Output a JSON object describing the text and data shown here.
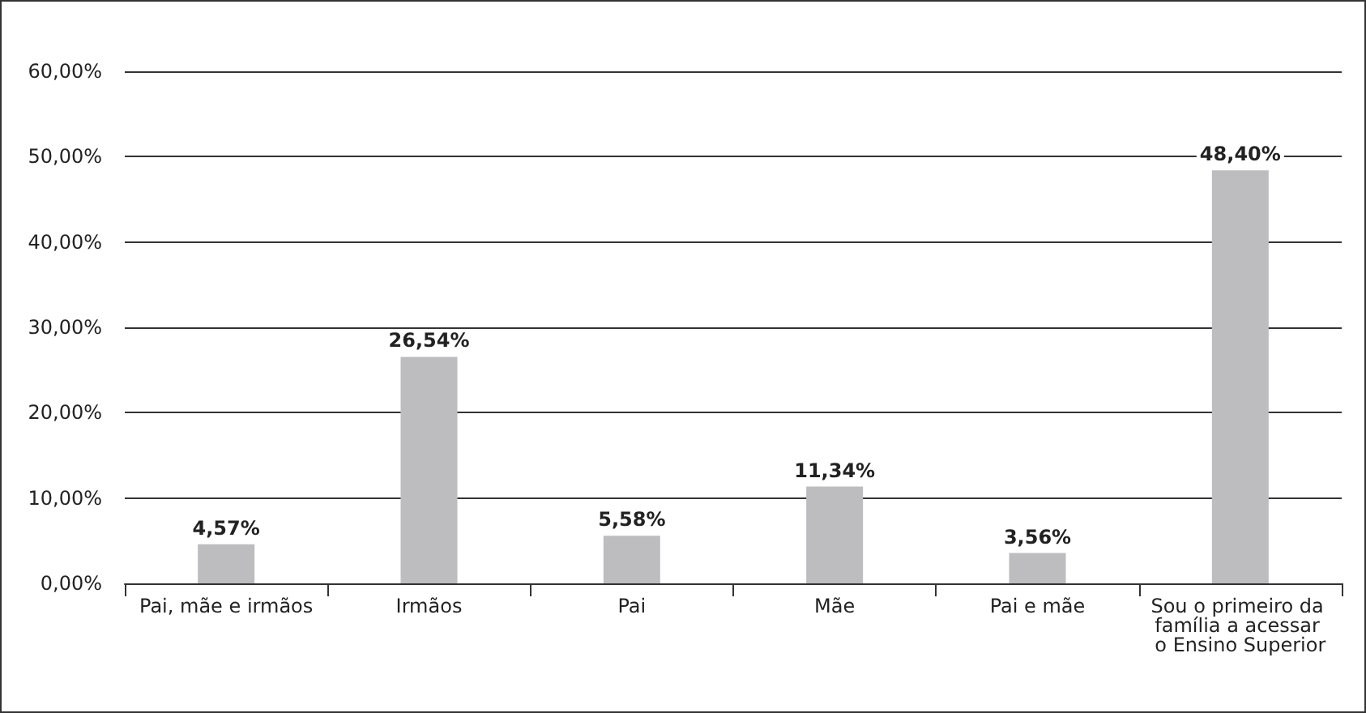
{
  "chart_data": {
    "type": "bar",
    "categories": [
      "Pai, mãe e irmãos",
      "Irmãos",
      "Pai",
      "Mãe",
      "Pai e mãe",
      "Sou o primeiro da família a acessar o Ensino Superior"
    ],
    "values": [
      4.57,
      26.54,
      5.58,
      11.34,
      3.56,
      48.4
    ],
    "value_labels": [
      "4,57%",
      "26,54%",
      "5,58%",
      "11,34%",
      "3,56%",
      "48,40%"
    ],
    "color": "#bdbdbf",
    "ylim": [
      0,
      60
    ],
    "yticks": [
      {
        "value": 0,
        "label": "0,00%"
      },
      {
        "value": 10,
        "label": "10,00%"
      },
      {
        "value": 20,
        "label": "20,00%"
      },
      {
        "value": 30,
        "label": "30,00%"
      },
      {
        "value": 40,
        "label": "40,00%"
      },
      {
        "value": 50,
        "label": "50,00%"
      },
      {
        "value": 60,
        "label": "60,00%"
      }
    ],
    "grid": "y"
  }
}
